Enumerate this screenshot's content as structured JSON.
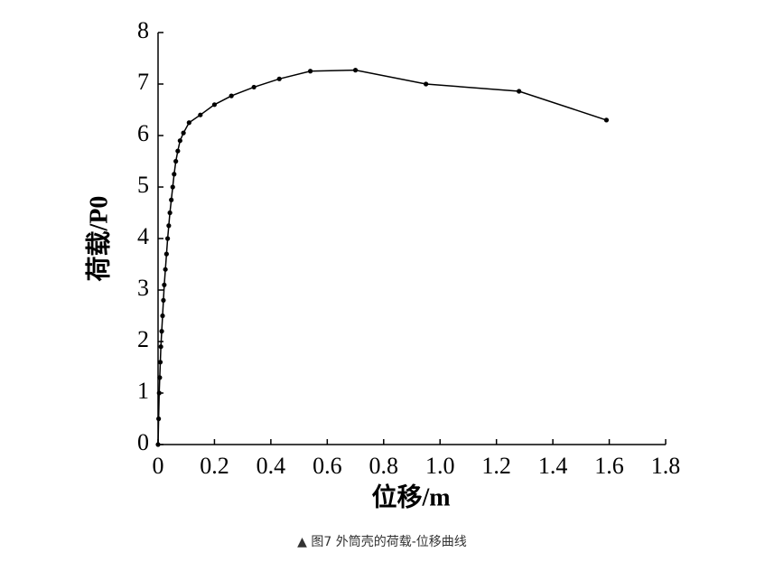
{
  "chart_data": {
    "type": "line",
    "xlabel": "位移/m",
    "ylabel": "荷载/P0",
    "x": [
      0,
      0.002,
      0.004,
      0.006,
      0.008,
      0.01,
      0.013,
      0.016,
      0.019,
      0.022,
      0.026,
      0.03,
      0.034,
      0.038,
      0.042,
      0.047,
      0.052,
      0.057,
      0.063,
      0.07,
      0.078,
      0.09,
      0.11,
      0.15,
      0.2,
      0.26,
      0.34,
      0.43,
      0.54,
      0.7,
      0.95,
      1.28,
      1.59
    ],
    "series": [
      {
        "color": "#000000",
        "values": [
          0,
          0.5,
          1.0,
          1.3,
          1.6,
          1.9,
          2.2,
          2.5,
          2.8,
          3.1,
          3.4,
          3.7,
          4.0,
          4.25,
          4.5,
          4.75,
          5.0,
          5.25,
          5.5,
          5.7,
          5.9,
          6.05,
          6.25,
          6.4,
          6.6,
          6.77,
          6.94,
          7.1,
          7.25,
          7.27,
          7.0,
          6.86,
          6.3
        ]
      }
    ],
    "xlim": [
      0,
      1.8
    ],
    "ylim": [
      0,
      8
    ],
    "xticks": [
      0,
      0.2,
      0.4,
      0.6,
      0.8,
      {
        "value": 1,
        "label": "1.0"
      },
      1.2,
      1.4,
      1.6,
      1.8
    ],
    "yticks": [
      0,
      1,
      2,
      3,
      4,
      5,
      6,
      7,
      8
    ],
    "grid": false
  },
  "caption": "▲ 图7  外筒壳的荷载-位移曲线"
}
